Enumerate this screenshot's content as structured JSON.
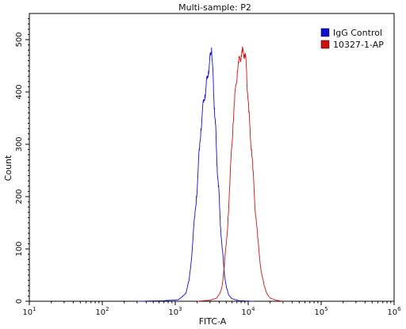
{
  "chart_data": {
    "type": "line",
    "title": "Multi-sample: P2",
    "xlabel": "FITC-A",
    "ylabel": "Count",
    "x_scale": "log",
    "xlim": [
      10,
      1000000
    ],
    "ylim": [
      0,
      550
    ],
    "x_ticks": [
      {
        "value": 10,
        "base": "10",
        "exp": "1"
      },
      {
        "value": 100,
        "base": "10",
        "exp": "2"
      },
      {
        "value": 1000,
        "base": "10",
        "exp": "3"
      },
      {
        "value": 10000,
        "base": "10",
        "exp": "4"
      },
      {
        "value": 100000,
        "base": "10",
        "exp": "5"
      },
      {
        "value": 1000000,
        "base": "10",
        "exp": "6"
      }
    ],
    "y_ticks": [
      0,
      100,
      200,
      300,
      400,
      500
    ],
    "legend_position": "top-right",
    "grid": false,
    "series": [
      {
        "name": "IgG Control",
        "color": "#1010d0",
        "points": [
          [
            300,
            0
          ],
          [
            700,
            1
          ],
          [
            1100,
            3
          ],
          [
            1400,
            15
          ],
          [
            1550,
            40
          ],
          [
            1650,
            75
          ],
          [
            1750,
            120
          ],
          [
            1850,
            160
          ],
          [
            1950,
            200
          ],
          [
            2050,
            245
          ],
          [
            2150,
            290
          ],
          [
            2250,
            330
          ],
          [
            2350,
            360
          ],
          [
            2450,
            380
          ],
          [
            2550,
            395
          ],
          [
            2650,
            410
          ],
          [
            2750,
            425
          ],
          [
            2850,
            440
          ],
          [
            2950,
            455
          ],
          [
            3050,
            470
          ],
          [
            3150,
            485
          ],
          [
            3250,
            450
          ],
          [
            3350,
            400
          ],
          [
            3450,
            370
          ],
          [
            3550,
            340
          ],
          [
            3650,
            300
          ],
          [
            3750,
            260
          ],
          [
            3900,
            220
          ],
          [
            4050,
            180
          ],
          [
            4200,
            140
          ],
          [
            4400,
            100
          ],
          [
            4600,
            70
          ],
          [
            4800,
            45
          ],
          [
            5050,
            25
          ],
          [
            5400,
            12
          ],
          [
            6000,
            5
          ],
          [
            7500,
            1
          ],
          [
            12000,
            0
          ]
        ]
      },
      {
        "name": "10327-1-AP",
        "color": "#d01010",
        "points": [
          [
            2000,
            0
          ],
          [
            3000,
            2
          ],
          [
            3700,
            6
          ],
          [
            4100,
            15
          ],
          [
            4400,
            30
          ],
          [
            4700,
            65
          ],
          [
            5000,
            110
          ],
          [
            5300,
            160
          ],
          [
            5600,
            220
          ],
          [
            5900,
            290
          ],
          [
            6200,
            340
          ],
          [
            6500,
            380
          ],
          [
            6800,
            415
          ],
          [
            7100,
            440
          ],
          [
            7400,
            455
          ],
          [
            7700,
            465
          ],
          [
            8000,
            470
          ],
          [
            8300,
            475
          ],
          [
            8600,
            478
          ],
          [
            8900,
            472
          ],
          [
            9200,
            465
          ],
          [
            9500,
            440
          ],
          [
            9800,
            400
          ],
          [
            10200,
            360
          ],
          [
            10600,
            330
          ],
          [
            11100,
            290
          ],
          [
            11600,
            250
          ],
          [
            12200,
            200
          ],
          [
            12800,
            160
          ],
          [
            13500,
            120
          ],
          [
            14300,
            85
          ],
          [
            15200,
            55
          ],
          [
            16500,
            30
          ],
          [
            18000,
            15
          ],
          [
            20000,
            6
          ],
          [
            24000,
            2
          ],
          [
            30000,
            0
          ]
        ]
      }
    ]
  }
}
